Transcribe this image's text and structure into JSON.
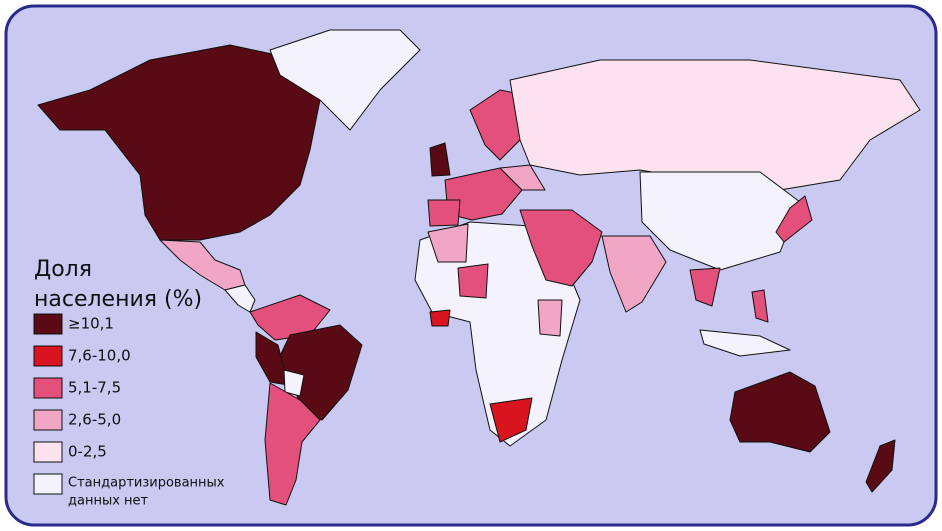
{
  "legend": {
    "title_lines": [
      "Доля",
      "населения (%)"
    ],
    "items": [
      {
        "label_lines": [
          "≥10,1"
        ],
        "color": "#5a0a14"
      },
      {
        "label_lines": [
          "7,6-10,0"
        ],
        "color": "#d8141e"
      },
      {
        "label_lines": [
          "5,1-7,5"
        ],
        "color": "#e4507c"
      },
      {
        "label_lines": [
          "2,6-5,0"
        ],
        "color": "#f2a6c6"
      },
      {
        "label_lines": [
          "0-2,5"
        ],
        "color": "#fce2ee"
      },
      {
        "label_lines": [
          "Стандартизированных",
          "данных нет"
        ],
        "color": "#f4f2fc"
      }
    ]
  }
}
